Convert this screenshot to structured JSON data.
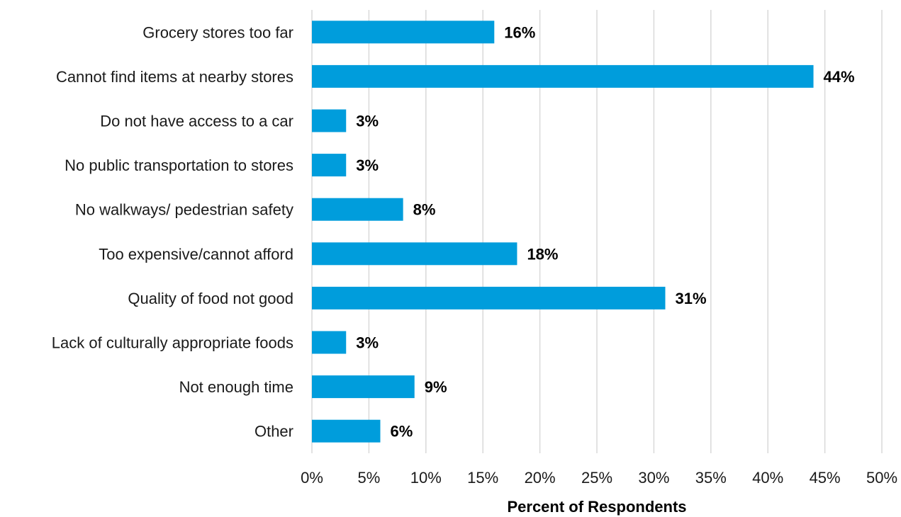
{
  "chart_data": {
    "type": "bar",
    "orientation": "horizontal",
    "categories": [
      "Grocery stores too far",
      "Cannot find items at nearby stores",
      "Do not have access to a car",
      "No public transportation to stores",
      "No walkways/ pedestrian safety",
      "Too expensive/cannot afford",
      "Quality of food not good",
      "Lack of culturally appropriate foods",
      "Not enough time",
      "Other"
    ],
    "values": [
      16,
      44,
      3,
      3,
      8,
      18,
      31,
      3,
      9,
      6
    ],
    "data_labels": [
      "16%",
      "44%",
      "3%",
      "3%",
      "8%",
      "18%",
      "31%",
      "3%",
      "9%",
      "6%"
    ],
    "x_ticks": [
      "0%",
      "5%",
      "10%",
      "15%",
      "20%",
      "25%",
      "30%",
      "35%",
      "40%",
      "45%",
      "50%"
    ],
    "xlim": [
      0,
      50
    ],
    "xlabel": "Percent of Respondents",
    "ylabel": "",
    "title": "",
    "grid": "vertical",
    "legend": "none",
    "bar_color": "#009ddc"
  }
}
